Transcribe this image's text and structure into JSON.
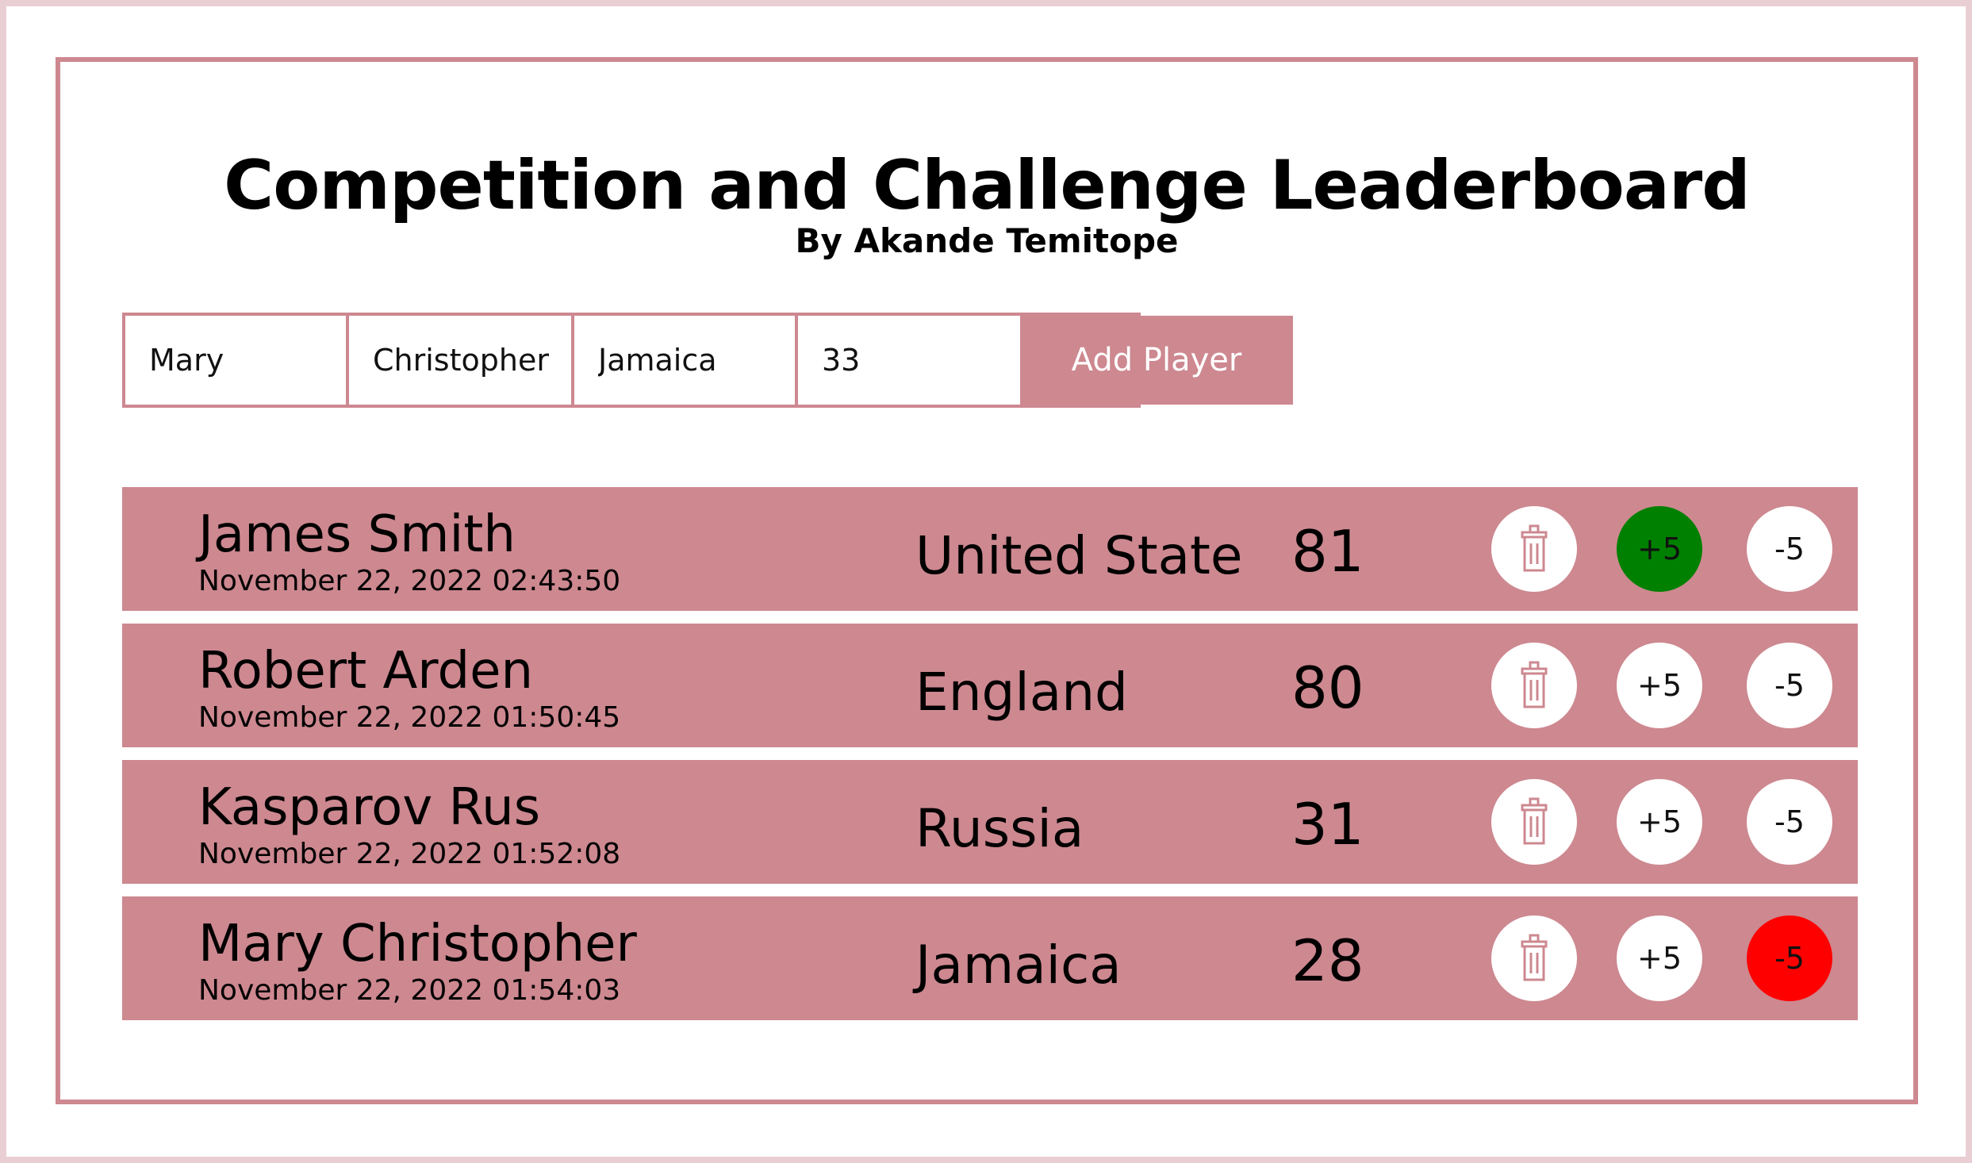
{
  "header": {
    "title": "Competition and Challenge Leaderboard",
    "subtitle": "By Akande Temitope"
  },
  "form": {
    "first_name": "Mary",
    "last_name": "Christopher",
    "country": "Jamaica",
    "score": "33",
    "add_label": "Add Player"
  },
  "players": [
    {
      "name": "James Smith",
      "date": "November 22, 2022 02:43:50",
      "country": "United State",
      "score": "81",
      "plus_label": "+5",
      "minus_label": "-5",
      "plus_active": true,
      "minus_active": false
    },
    {
      "name": "Robert Arden",
      "date": "November 22, 2022 01:50:45",
      "country": "England",
      "score": "80",
      "plus_label": "+5",
      "minus_label": "-5",
      "plus_active": false,
      "minus_active": false
    },
    {
      "name": "Kasparov Rus",
      "date": "November 22, 2022 01:52:08",
      "country": "Russia",
      "score": "31",
      "plus_label": "+5",
      "minus_label": "-5",
      "plus_active": false,
      "minus_active": false
    },
    {
      "name": "Mary Christopher",
      "date": "November 22, 2022 01:54:03",
      "country": "Jamaica",
      "score": "28",
      "plus_label": "+5",
      "minus_label": "-5",
      "plus_active": false,
      "minus_active": true
    }
  ],
  "colors": {
    "accent": "#cd8890",
    "frame": "#e9cfd4",
    "plus_active": "#008000",
    "minus_active": "#ff0000"
  },
  "icons": {
    "delete": "trash-icon"
  }
}
